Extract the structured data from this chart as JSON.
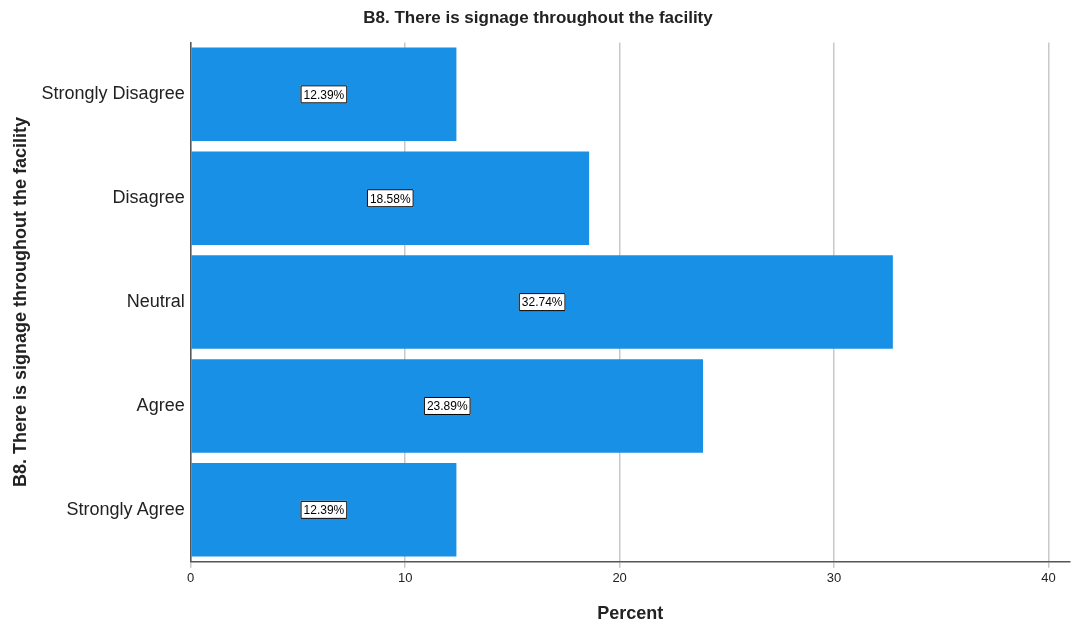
{
  "chart_data": {
    "type": "bar",
    "orientation": "horizontal",
    "title": "B8. There is signage throughout the facility",
    "xlabel": "Percent",
    "ylabel": "B8. There is signage throughout the facility",
    "categories": [
      "Strongly Disagree",
      "Disagree",
      "Neutral",
      "Agree",
      "Strongly Agree"
    ],
    "values": [
      12.39,
      18.58,
      32.74,
      23.89,
      12.39
    ],
    "value_labels": [
      "12.39%",
      "18.58%",
      "32.74%",
      "23.89%",
      "12.39%"
    ],
    "color": "#1790e6",
    "xlim": [
      0,
      41
    ],
    "xticks": [
      0,
      10,
      20,
      30,
      40
    ],
    "grid": "x",
    "legend": false
  }
}
